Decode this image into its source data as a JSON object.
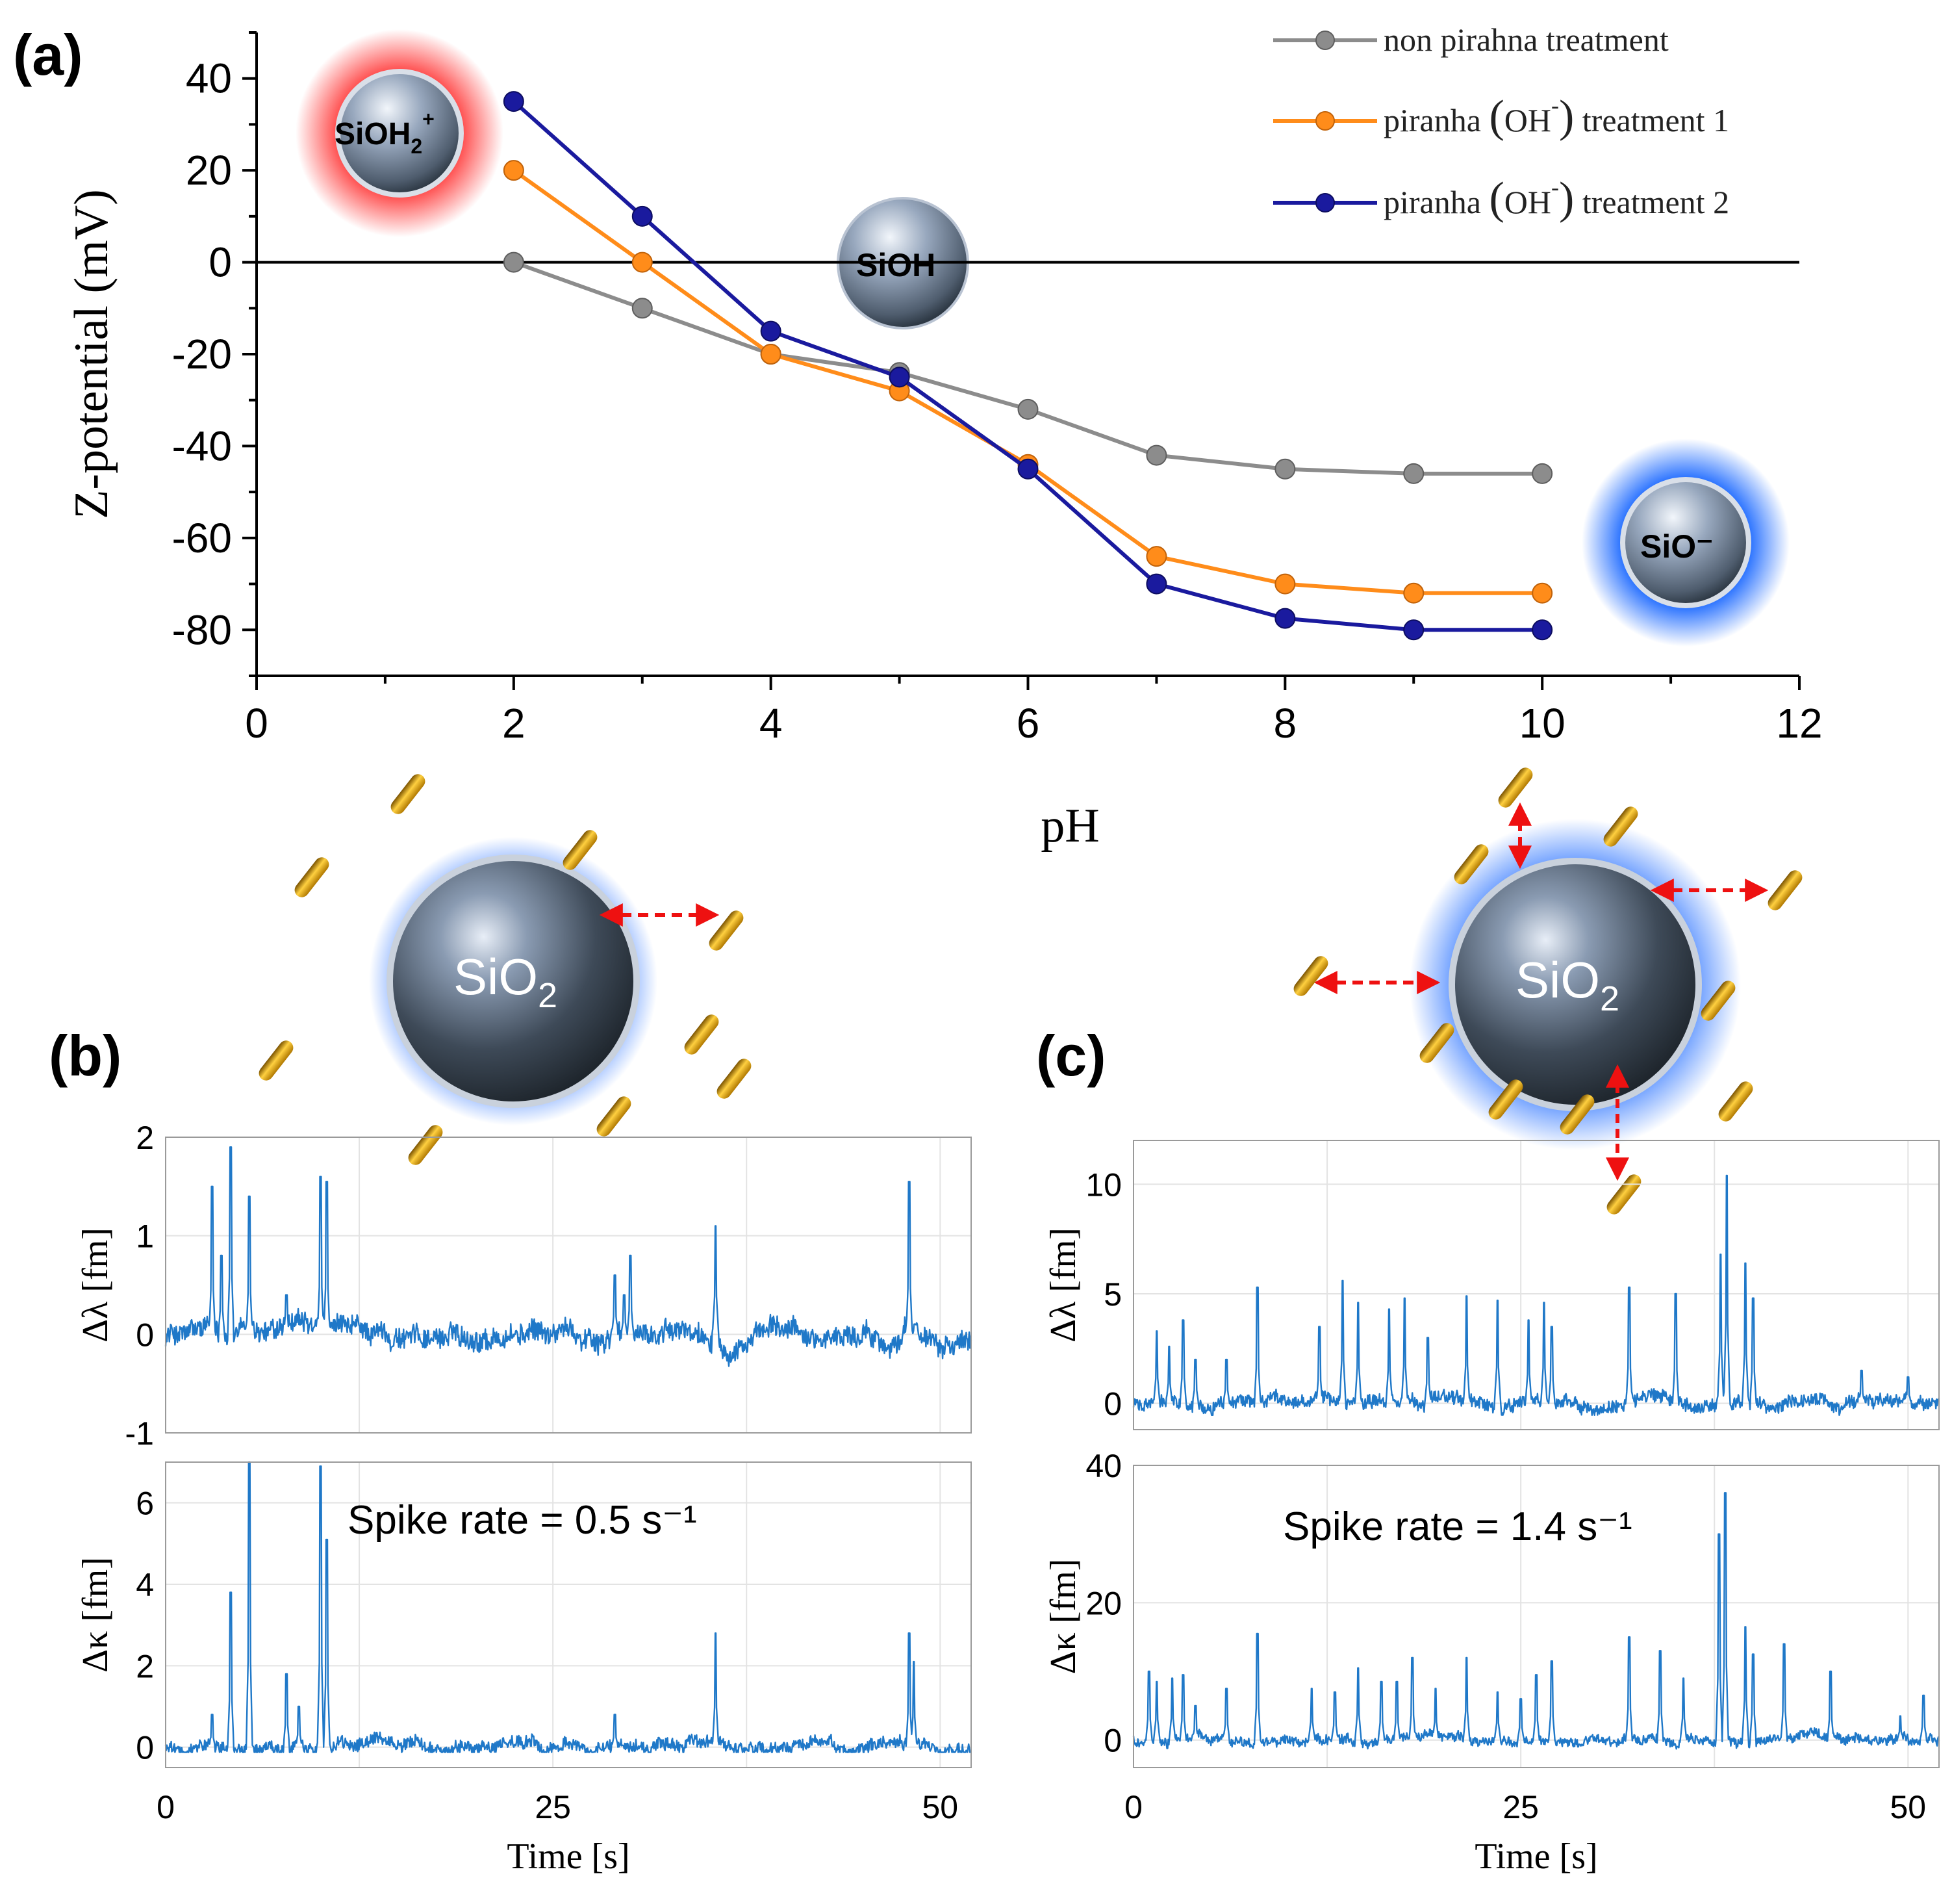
{
  "panels": {
    "a": "(a)",
    "b": "(b)",
    "c": "(c)"
  },
  "chart_data": [
    {
      "type": "line",
      "panel": "(a)",
      "xlabel": "pH",
      "ylabel": "Z-potential (mV)",
      "xlim": [
        0,
        12
      ],
      "ylim": [
        -90,
        50
      ],
      "xticks": [
        0,
        2,
        4,
        6,
        8,
        10,
        12
      ],
      "yticks": [
        -80,
        -60,
        -40,
        -20,
        0,
        20,
        40
      ],
      "x": [
        2,
        3,
        4,
        5,
        6,
        7,
        8,
        9,
        10
      ],
      "legend_position": "top-right",
      "series": [
        {
          "name": "non pirahna treatment",
          "color": "#8c8c8c",
          "values": [
            0,
            -10,
            -20,
            -24,
            -32,
            -42,
            -45,
            -46,
            -46
          ]
        },
        {
          "name": "piranha (OH⁻) treatment 1",
          "color": "#ff8c1a",
          "values": [
            20,
            0,
            -20,
            -28,
            -44,
            -64,
            -70,
            -72,
            -72
          ]
        },
        {
          "name": "piranha (OH⁻) treatment 2",
          "color": "#1a1a9e",
          "values": [
            35,
            10,
            -15,
            -25,
            -45,
            -70,
            -77.5,
            -80,
            -80
          ]
        }
      ],
      "annotations": [
        "SiOH₂⁺",
        "SiOH",
        "SiO⁻"
      ]
    },
    {
      "type": "line",
      "panel": "(b)",
      "series": [
        {
          "name": "Δλ [fm]",
          "ylim": [
            -1,
            2
          ],
          "yticks": [
            -1,
            0,
            1,
            2
          ],
          "baseline_noise": 0.12,
          "spikes": [
            [
              3.0,
              1.5
            ],
            [
              3.6,
              0.8
            ],
            [
              4.2,
              1.9
            ],
            [
              5.4,
              1.4
            ],
            [
              7.8,
              0.4
            ],
            [
              10.0,
              1.6
            ],
            [
              10.4,
              1.55
            ],
            [
              29.0,
              0.6
            ],
            [
              29.6,
              0.4
            ],
            [
              30.0,
              0.8
            ],
            [
              35.5,
              1.1
            ],
            [
              48.0,
              1.55
            ]
          ]
        },
        {
          "name": "Δκ [fm]",
          "ylim": [
            -0.5,
            7
          ],
          "yticks": [
            0,
            2,
            4,
            6
          ],
          "baseline_noise": 0.18,
          "spikes": [
            [
              3.0,
              0.8
            ],
            [
              4.2,
              3.8
            ],
            [
              5.4,
              7.0
            ],
            [
              7.8,
              1.8
            ],
            [
              8.6,
              1.0
            ],
            [
              10.0,
              6.9
            ],
            [
              10.4,
              5.1
            ],
            [
              29.0,
              0.8
            ],
            [
              35.5,
              2.8
            ],
            [
              48.0,
              2.8
            ],
            [
              48.3,
              2.1
            ]
          ]
        }
      ],
      "x_range": [
        0,
        52
      ],
      "xticks": [
        0,
        25,
        50
      ],
      "xlabel": "Time [s]",
      "annotation": "Spike rate = 0.5 s⁻¹"
    },
    {
      "type": "line",
      "panel": "(c)",
      "series": [
        {
          "name": "Δλ [fm]",
          "ylim": [
            -1.2,
            12
          ],
          "yticks": [
            0,
            5,
            10
          ],
          "baseline_noise": 0.35,
          "spikes": [
            [
              1.5,
              3.3
            ],
            [
              2.3,
              2.6
            ],
            [
              3.2,
              3.8
            ],
            [
              4.0,
              2.0
            ],
            [
              6.0,
              2.0
            ],
            [
              8.0,
              5.3
            ],
            [
              12.0,
              3.5
            ],
            [
              13.5,
              5.6
            ],
            [
              14.5,
              4.6
            ],
            [
              16.5,
              4.3
            ],
            [
              17.5,
              4.8
            ],
            [
              19.0,
              3.0
            ],
            [
              21.5,
              4.9
            ],
            [
              23.5,
              4.7
            ],
            [
              25.5,
              3.8
            ],
            [
              26.5,
              4.6
            ],
            [
              27.0,
              3.5
            ],
            [
              32.0,
              5.3
            ],
            [
              35.0,
              5.0
            ],
            [
              37.9,
              6.8
            ],
            [
              38.3,
              10.4
            ],
            [
              39.5,
              6.4
            ],
            [
              40.0,
              4.8
            ],
            [
              47.0,
              1.5
            ],
            [
              50.0,
              1.2
            ]
          ]
        },
        {
          "name": "Δκ [fm]",
          "ylim": [
            -4,
            40
          ],
          "yticks": [
            0,
            20,
            40
          ],
          "baseline_noise": 0.8,
          "spikes": [
            [
              1.0,
              10.0
            ],
            [
              1.5,
              8.5
            ],
            [
              2.5,
              9.0
            ],
            [
              3.2,
              9.5
            ],
            [
              4.0,
              5.0
            ],
            [
              6.0,
              7.5
            ],
            [
              8.0,
              15.5
            ],
            [
              11.5,
              7.5
            ],
            [
              13.0,
              7.0
            ],
            [
              14.5,
              10.5
            ],
            [
              16.0,
              8.5
            ],
            [
              17.0,
              8.5
            ],
            [
              18.0,
              12.0
            ],
            [
              19.5,
              7.5
            ],
            [
              21.5,
              12.0
            ],
            [
              23.5,
              7.0
            ],
            [
              25.0,
              6.0
            ],
            [
              26.0,
              9.5
            ],
            [
              27.0,
              11.5
            ],
            [
              32.0,
              15.0
            ],
            [
              34.0,
              13.0
            ],
            [
              35.5,
              9.0
            ],
            [
              37.8,
              30.0
            ],
            [
              38.2,
              36.0
            ],
            [
              39.5,
              16.5
            ],
            [
              40.0,
              12.5
            ],
            [
              42.0,
              14.0
            ],
            [
              45.0,
              10.0
            ],
            [
              49.5,
              3.5
            ],
            [
              51.0,
              6.5
            ]
          ]
        }
      ],
      "x_range": [
        0,
        52
      ],
      "xticks": [
        0,
        25,
        50
      ],
      "xlabel": "Time [s]",
      "annotation": "Spike rate = 1.4 s⁻¹"
    }
  ],
  "illustrations": {
    "particle_label": "SiO",
    "particle_subscript": "2",
    "sioh2_base": "SiOH",
    "sioh2_sub": "2",
    "sioh2_sup": "+",
    "sioh_label": "SiOH",
    "sio_minus_label": "SiO⁻"
  },
  "legend": {
    "item1": "non pirahna treatment",
    "item2_pre": "piranha ",
    "item2_paren_open": "(",
    "item2_ion": "OH",
    "item2_sup": "-",
    "item2_paren_close": ")",
    "item2_post": " treatment 1",
    "item3_pre": "piranha ",
    "item3_paren_open": "(",
    "item3_ion": "OH",
    "item3_sup": "-",
    "item3_paren_close": ")",
    "item3_post": " treatment 2"
  },
  "colors": {
    "gray": "#8c8c8c",
    "orange": "#ff8c1a",
    "navy": "#1a1a9e",
    "trace": "#1f78c8",
    "arrow": "#ee1111"
  }
}
